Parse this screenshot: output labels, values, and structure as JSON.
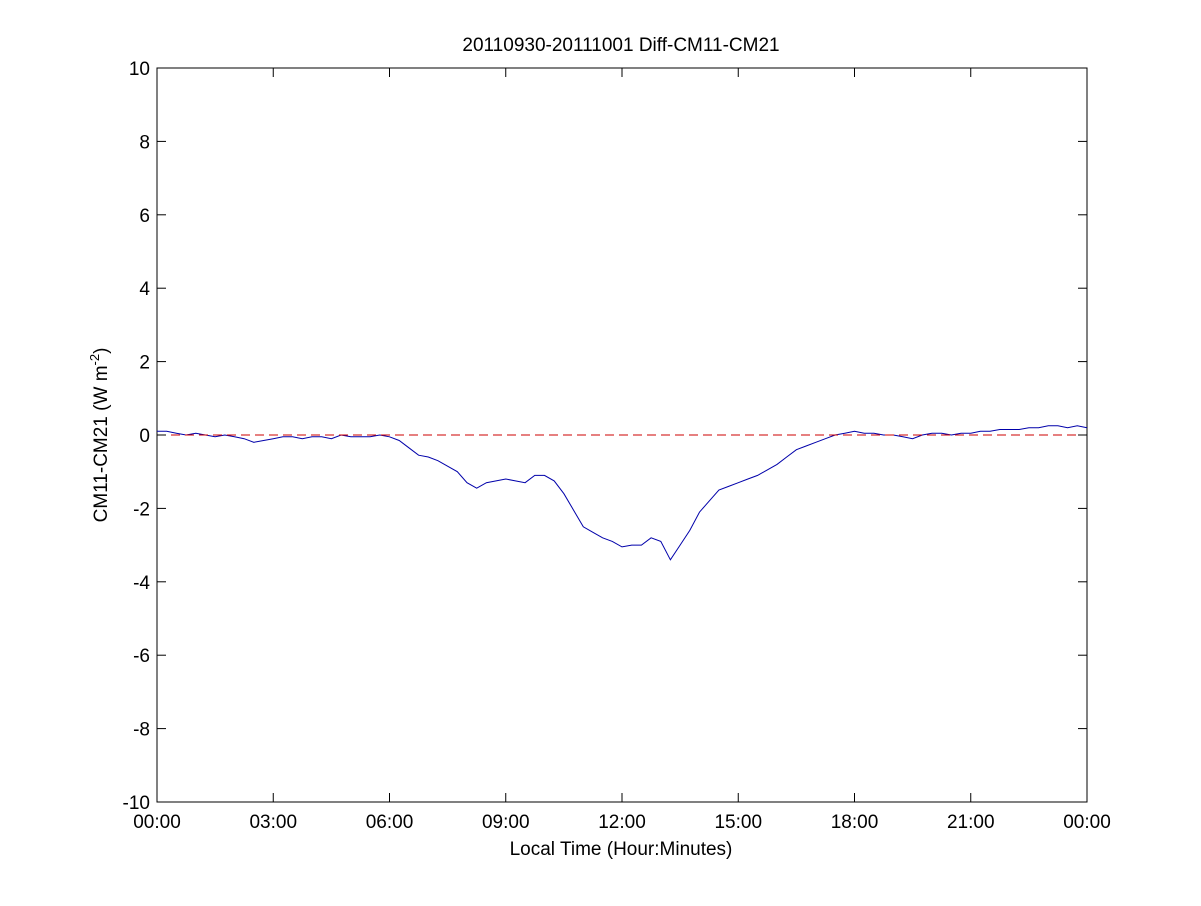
{
  "chart_data": {
    "type": "line",
    "title": "20110930-20111001 Diff-CM11-CM21",
    "xlabel": "Local Time (Hour:Minutes)",
    "ylabel_main": "CM11-CM21 (W m",
    "ylabel_sup": "-2",
    "ylabel_close": ")",
    "xlim_hours": [
      0,
      24
    ],
    "ylim": [
      -10,
      10
    ],
    "x_ticks": [
      {
        "hour": 0,
        "label": "00:00"
      },
      {
        "hour": 3,
        "label": "03:00"
      },
      {
        "hour": 6,
        "label": "06:00"
      },
      {
        "hour": 9,
        "label": "09:00"
      },
      {
        "hour": 12,
        "label": "12:00"
      },
      {
        "hour": 15,
        "label": "15:00"
      },
      {
        "hour": 18,
        "label": "18:00"
      },
      {
        "hour": 21,
        "label": "21:00"
      },
      {
        "hour": 24,
        "label": "00:00"
      }
    ],
    "y_ticks": [
      {
        "value": 10,
        "label": "10"
      },
      {
        "value": 8,
        "label": "8"
      },
      {
        "value": 6,
        "label": "6"
      },
      {
        "value": 4,
        "label": "4"
      },
      {
        "value": 2,
        "label": "2"
      },
      {
        "value": 0,
        "label": "0"
      },
      {
        "value": -2,
        "label": "-2"
      },
      {
        "value": -4,
        "label": "-4"
      },
      {
        "value": -6,
        "label": "-6"
      },
      {
        "value": -8,
        "label": "-8"
      },
      {
        "value": -10,
        "label": "-10"
      }
    ],
    "grid": false,
    "series": [
      {
        "color": "#0000aa",
        "x_hours": [
          0,
          0.25,
          0.5,
          0.75,
          1,
          1.25,
          1.5,
          1.75,
          2,
          2.25,
          2.5,
          2.75,
          3,
          3.25,
          3.5,
          3.75,
          4,
          4.25,
          4.5,
          4.75,
          5,
          5.25,
          5.5,
          5.75,
          6,
          6.25,
          6.5,
          6.75,
          7,
          7.25,
          7.5,
          7.75,
          8,
          8.25,
          8.5,
          8.75,
          9,
          9.25,
          9.5,
          9.75,
          10,
          10.25,
          10.5,
          10.75,
          11,
          11.25,
          11.5,
          11.75,
          12,
          12.25,
          12.5,
          12.75,
          13,
          13.25,
          13.5,
          13.75,
          14,
          14.25,
          14.5,
          14.75,
          15,
          15.25,
          15.5,
          15.75,
          16,
          16.25,
          16.5,
          16.75,
          17,
          17.25,
          17.5,
          17.75,
          18,
          18.25,
          18.5,
          18.75,
          19,
          19.25,
          19.5,
          19.75,
          20,
          20.25,
          20.5,
          20.75,
          21,
          21.25,
          21.5,
          21.75,
          22,
          22.25,
          22.5,
          22.75,
          23,
          23.25,
          23.5,
          23.75,
          24
        ],
        "y": [
          0.1,
          0.1,
          0.05,
          0.0,
          0.05,
          0.0,
          -0.05,
          0.0,
          -0.05,
          -0.1,
          -0.2,
          -0.15,
          -0.1,
          -0.05,
          -0.05,
          -0.1,
          -0.05,
          -0.05,
          -0.1,
          0.0,
          -0.05,
          -0.05,
          -0.05,
          0.0,
          -0.05,
          -0.15,
          -0.35,
          -0.55,
          -0.6,
          -0.7,
          -0.85,
          -1.0,
          -1.3,
          -1.45,
          -1.3,
          -1.25,
          -1.2,
          -1.25,
          -1.3,
          -1.1,
          -1.1,
          -1.25,
          -1.6,
          -2.05,
          -2.5,
          -2.65,
          -2.8,
          -2.9,
          -3.05,
          -3.0,
          -3.0,
          -2.8,
          -2.9,
          -3.4,
          -3.0,
          -2.6,
          -2.1,
          -1.8,
          -1.5,
          -1.4,
          -1.3,
          -1.2,
          -1.1,
          -0.95,
          -0.8,
          -0.6,
          -0.4,
          -0.3,
          -0.2,
          -0.1,
          0.0,
          0.05,
          0.1,
          0.05,
          0.05,
          0.0,
          0.0,
          -0.05,
          -0.1,
          0.0,
          0.05,
          0.05,
          0.0,
          0.05,
          0.05,
          0.1,
          0.1,
          0.15,
          0.15,
          0.15,
          0.2,
          0.2,
          0.25,
          0.25,
          0.2,
          0.25,
          0.2
        ]
      },
      {
        "color": "#cc0000",
        "style": "dashed",
        "x_hours": [
          0,
          24
        ],
        "y": [
          0,
          0
        ]
      }
    ]
  }
}
